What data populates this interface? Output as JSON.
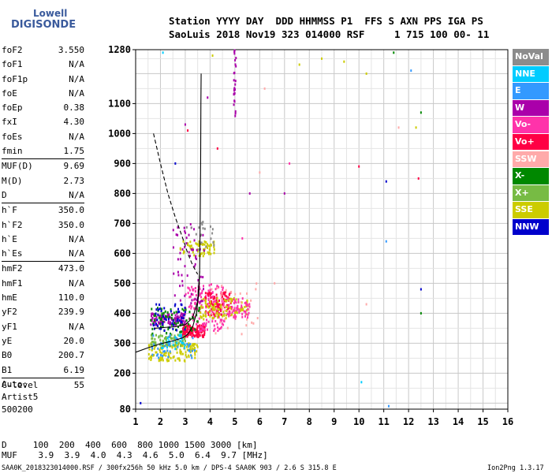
{
  "logo": {
    "line1": "Lowell",
    "line2": "DIGISONDE"
  },
  "header": {
    "line1": "Station YYYY DAY  DDD HHMMSS P1  FFS S AXN PPS IGA PS",
    "line2": "SaoLuis 2018 Nov19 323 014000 RSF     1 715 100 00- 11"
  },
  "params": [
    {
      "k": "foF2",
      "v": "3.550"
    },
    {
      "k": "foF1",
      "v": "N/A"
    },
    {
      "k": "foF1p",
      "v": "N/A"
    },
    {
      "k": "foE",
      "v": "N/A"
    },
    {
      "k": "foEp",
      "v": "0.38"
    },
    {
      "k": "fxI",
      "v": "4.30"
    },
    {
      "k": "foEs",
      "v": "N/A"
    },
    {
      "k": "fmin",
      "v": "1.75"
    },
    {
      "k": "MUF(D)",
      "v": "9.69"
    },
    {
      "k": "M(D)",
      "v": "2.73"
    },
    {
      "k": "D",
      "v": "N/A"
    },
    {
      "k": "h`F",
      "v": "350.0"
    },
    {
      "k": "h`F2",
      "v": "350.0"
    },
    {
      "k": "h`E",
      "v": "N/A"
    },
    {
      "k": "h`Es",
      "v": "N/A"
    },
    {
      "k": "hmF2",
      "v": "473.0"
    },
    {
      "k": "hmF1",
      "v": "N/A"
    },
    {
      "k": "hmE",
      "v": "110.0"
    },
    {
      "k": "yF2",
      "v": "239.9"
    },
    {
      "k": "yF1",
      "v": "N/A"
    },
    {
      "k": "yE",
      "v": "20.0"
    },
    {
      "k": "B0",
      "v": "200.7"
    },
    {
      "k": "B1",
      "v": "6.19"
    },
    {
      "k": "C-level",
      "v": "55"
    }
  ],
  "auto": {
    "line1": "Auto:",
    "line2": "Artist5",
    "line3": "500200"
  },
  "legend": [
    {
      "label": "NoVal",
      "color": "#8c8c8c"
    },
    {
      "label": "NNE",
      "color": "#00ccff"
    },
    {
      "label": "E",
      "color": "#3399ff"
    },
    {
      "label": "W",
      "color": "#aa00aa"
    },
    {
      "label": "Vo-",
      "color": "#ff33aa"
    },
    {
      "label": "Vo+",
      "color": "#ff0044"
    },
    {
      "label": "SSW",
      "color": "#ffaaaa"
    },
    {
      "label": "X-",
      "color": "#008800"
    },
    {
      "label": "X+",
      "color": "#77bb44"
    },
    {
      "label": "SSE",
      "color": "#cccc00"
    },
    {
      "label": "NNW",
      "color": "#0000cc"
    }
  ],
  "bottom": {
    "line1": "D     100  200  400  600  800 1000 1500 3000 [km]",
    "line2": "MUF    3.9  3.9  4.0  4.3  4.6  5.0  6.4  9.7 [MHz]"
  },
  "footer": {
    "left": "SAA0K_2018323014000.RSF / 300fx256h 50 kHz 5.0 km / DPS-4 SAA0K 903 / 2.6 S 315.8 E",
    "right": "Ion2Png 1.3.17"
  },
  "chart_data": {
    "type": "scatter",
    "title": "",
    "xlabel": "",
    "ylabel": "",
    "xlim": [
      1,
      16
    ],
    "ylim": [
      80,
      1280
    ],
    "x_ticks": [
      1,
      2,
      3,
      4,
      5,
      6,
      7,
      8,
      9,
      10,
      11,
      12,
      13,
      14,
      15,
      16
    ],
    "y_ticks": [
      80,
      200,
      300,
      400,
      500,
      600,
      700,
      800,
      900,
      1000,
      1100,
      1280
    ],
    "grid": true,
    "traces": [
      {
        "style": "solid",
        "points": [
          [
            1.0,
            270
          ],
          [
            1.5,
            285
          ],
          [
            2.0,
            298
          ],
          [
            2.5,
            308
          ],
          [
            2.9,
            318
          ],
          [
            3.1,
            330
          ],
          [
            3.3,
            355
          ],
          [
            3.45,
            400
          ],
          [
            3.55,
            470
          ],
          [
            3.58,
            540
          ]
        ]
      },
      {
        "style": "solid",
        "points": [
          [
            1.75,
            350
          ],
          [
            2.2,
            353
          ],
          [
            2.6,
            355
          ],
          [
            3.0,
            362
          ],
          [
            3.3,
            385
          ],
          [
            3.5,
            440
          ],
          [
            3.58,
            540
          ],
          [
            3.6,
            700
          ],
          [
            3.62,
            900
          ],
          [
            3.63,
            1100
          ],
          [
            3.64,
            1200
          ]
        ]
      },
      {
        "style": "dashed",
        "points": [
          [
            1.72,
            1000
          ],
          [
            2.0,
            900
          ],
          [
            2.3,
            800
          ],
          [
            2.6,
            720
          ],
          [
            2.9,
            650
          ],
          [
            3.1,
            600
          ],
          [
            3.3,
            560
          ],
          [
            3.5,
            530
          ]
        ]
      }
    ],
    "echo_clusters": [
      {
        "color": "#aa00aa",
        "x": [
          1.6,
          3.0
        ],
        "y": [
          360,
          400
        ],
        "n": 130
      },
      {
        "color": "#ff0044",
        "x": [
          2.9,
          3.8
        ],
        "y": [
          320,
          360
        ],
        "n": 140
      },
      {
        "color": "#ff33aa",
        "x": [
          3.0,
          4.6
        ],
        "y": [
          340,
          500
        ],
        "n": 150
      },
      {
        "color": "#ff0044",
        "x": [
          3.8,
          4.9
        ],
        "y": [
          390,
          470
        ],
        "n": 110
      },
      {
        "color": "#cccc00",
        "x": [
          1.5,
          3.5
        ],
        "y": [
          240,
          300
        ],
        "n": 130
      },
      {
        "color": "#77bb44",
        "x": [
          1.6,
          3.0
        ],
        "y": [
          290,
          330
        ],
        "n": 80
      },
      {
        "color": "#cccc00",
        "x": [
          3.6,
          5.6
        ],
        "y": [
          380,
          450
        ],
        "n": 110
      },
      {
        "color": "#cccc00",
        "x": [
          2.8,
          4.2
        ],
        "y": [
          590,
          640
        ],
        "n": 60
      },
      {
        "color": "#008800",
        "x": [
          1.6,
          3.6
        ],
        "y": [
          330,
          420
        ],
        "n": 70
      },
      {
        "color": "#0000cc",
        "x": [
          1.7,
          3.2
        ],
        "y": [
          340,
          430
        ],
        "n": 50
      },
      {
        "color": "#aa00aa",
        "x": [
          2.5,
          3.8
        ],
        "y": [
          420,
          700
        ],
        "n": 60
      },
      {
        "color": "#3399ff",
        "x": [
          1.6,
          3.4
        ],
        "y": [
          250,
          330
        ],
        "n": 40
      },
      {
        "color": "#00ccff",
        "x": [
          2.0,
          3.0
        ],
        "y": [
          280,
          330
        ],
        "n": 25
      },
      {
        "color": "#ffaaaa",
        "x": [
          4.0,
          6.0
        ],
        "y": [
          330,
          500
        ],
        "n": 40
      },
      {
        "color": "#ff33aa",
        "x": [
          4.7,
          5.6
        ],
        "y": [
          380,
          450
        ],
        "n": 50
      },
      {
        "color": "#aa00aa",
        "x": [
          4.95,
          5.05
        ],
        "y": [
          1050,
          1280
        ],
        "n": 25
      },
      {
        "color": "#8c8c8c",
        "x": [
          3.0,
          4.2
        ],
        "y": [
          600,
          720
        ],
        "n": 20
      }
    ],
    "sparse_points": [
      {
        "x": 1.2,
        "y": 100,
        "color": "#0000cc"
      },
      {
        "x": 2.1,
        "y": 1270,
        "color": "#00ccff"
      },
      {
        "x": 2.6,
        "y": 900,
        "color": "#0000cc"
      },
      {
        "x": 3.0,
        "y": 1030,
        "color": "#aa00aa"
      },
      {
        "x": 3.1,
        "y": 1010,
        "color": "#ff0044"
      },
      {
        "x": 3.9,
        "y": 1120,
        "color": "#aa00aa"
      },
      {
        "x": 4.1,
        "y": 1260,
        "color": "#cccc00"
      },
      {
        "x": 4.3,
        "y": 950,
        "color": "#ff0044"
      },
      {
        "x": 5.3,
        "y": 650,
        "color": "#ff33aa"
      },
      {
        "x": 5.6,
        "y": 800,
        "color": "#aa00aa"
      },
      {
        "x": 6.2,
        "y": 1150,
        "color": "#ffaaaa"
      },
      {
        "x": 6.6,
        "y": 500,
        "color": "#ffaaaa"
      },
      {
        "x": 7.0,
        "y": 800,
        "color": "#aa00aa"
      },
      {
        "x": 7.2,
        "y": 900,
        "color": "#ff33aa"
      },
      {
        "x": 7.6,
        "y": 1230,
        "color": "#cccc00"
      },
      {
        "x": 8.5,
        "y": 1250,
        "color": "#cccc00"
      },
      {
        "x": 9.4,
        "y": 1240,
        "color": "#cccc00"
      },
      {
        "x": 10.0,
        "y": 890,
        "color": "#ff0044"
      },
      {
        "x": 10.1,
        "y": 170,
        "color": "#00ccff"
      },
      {
        "x": 10.3,
        "y": 1200,
        "color": "#cccc00"
      },
      {
        "x": 10.3,
        "y": 430,
        "color": "#ffaaaa"
      },
      {
        "x": 11.1,
        "y": 840,
        "color": "#0000cc"
      },
      {
        "x": 11.1,
        "y": 640,
        "color": "#3399ff"
      },
      {
        "x": 11.2,
        "y": 90,
        "color": "#3399ff"
      },
      {
        "x": 11.4,
        "y": 1270,
        "color": "#008800"
      },
      {
        "x": 11.6,
        "y": 1020,
        "color": "#ffaaaa"
      },
      {
        "x": 12.1,
        "y": 1210,
        "color": "#3399ff"
      },
      {
        "x": 12.3,
        "y": 1020,
        "color": "#cccc00"
      },
      {
        "x": 12.5,
        "y": 1070,
        "color": "#008800"
      },
      {
        "x": 12.4,
        "y": 850,
        "color": "#ff0044"
      },
      {
        "x": 12.5,
        "y": 480,
        "color": "#0000cc"
      },
      {
        "x": 12.5,
        "y": 400,
        "color": "#008800"
      },
      {
        "x": 6.0,
        "y": 870,
        "color": "#ffaaaa"
      }
    ]
  }
}
